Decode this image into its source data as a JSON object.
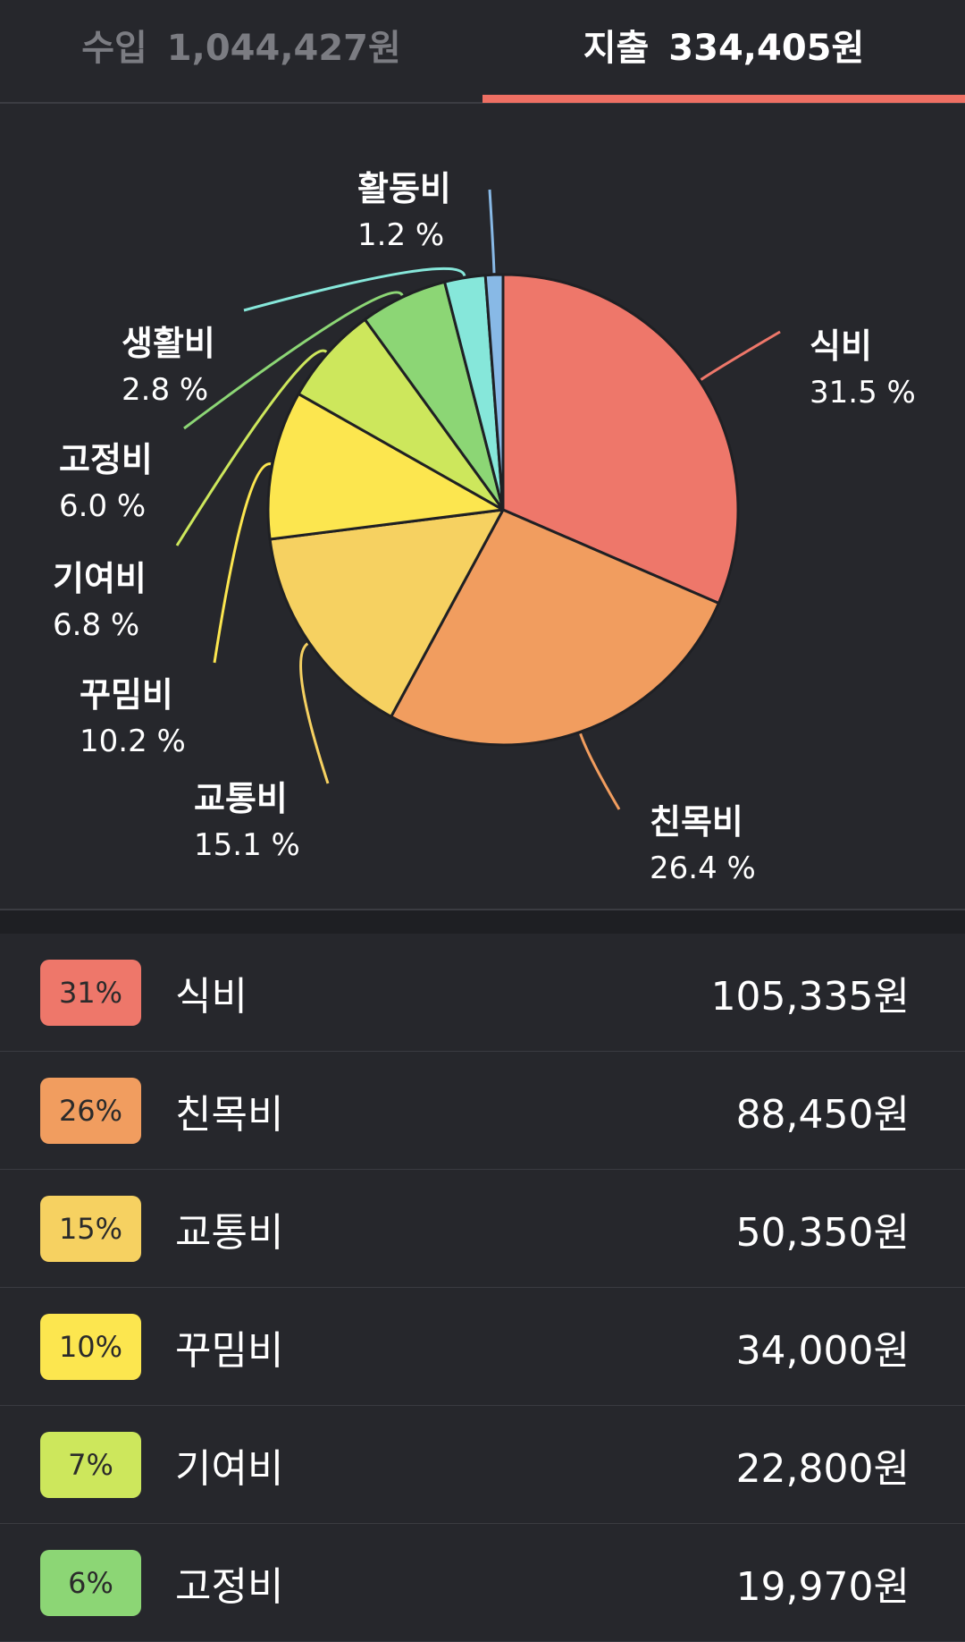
{
  "tabs": {
    "income": {
      "label": "수입",
      "amount": "1,044,427원"
    },
    "expense": {
      "label": "지출",
      "amount": "334,405원"
    }
  },
  "colors": {
    "accent": "#ee6f63",
    "background": "#26272c",
    "slice_stroke": "#1f2024"
  },
  "chart_data": {
    "type": "pie",
    "start": "12 o'clock, clockwise",
    "slices": [
      {
        "label": "식비",
        "percent": 31.5,
        "percent_text": "31.5 %",
        "color": "#ee776a"
      },
      {
        "label": "친목비",
        "percent": 26.4,
        "percent_text": "26.4 %",
        "color": "#f19d5f"
      },
      {
        "label": "교통비",
        "percent": 15.1,
        "percent_text": "15.1 %",
        "color": "#f6d161"
      },
      {
        "label": "꾸밈비",
        "percent": 10.2,
        "percent_text": "10.2 %",
        "color": "#fce64f"
      },
      {
        "label": "기여비",
        "percent": 6.8,
        "percent_text": "6.8 %",
        "color": "#cde75c"
      },
      {
        "label": "고정비",
        "percent": 6.0,
        "percent_text": "6.0 %",
        "color": "#8cd675"
      },
      {
        "label": "생활비",
        "percent": 2.8,
        "percent_text": "2.8 %",
        "color": "#86e7da"
      },
      {
        "label": "활동비",
        "percent": 1.2,
        "percent_text": "1.2 %",
        "color": "#88b9e6"
      }
    ]
  },
  "list": [
    {
      "badge": "31%",
      "name": "식비",
      "amount": "105,335원",
      "color": "#ee776a"
    },
    {
      "badge": "26%",
      "name": "친목비",
      "amount": "88,450원",
      "color": "#f19d5f"
    },
    {
      "badge": "15%",
      "name": "교통비",
      "amount": "50,350원",
      "color": "#f6d161"
    },
    {
      "badge": "10%",
      "name": "꾸밈비",
      "amount": "34,000원",
      "color": "#fce64f"
    },
    {
      "badge": "7%",
      "name": "기여비",
      "amount": "22,800원",
      "color": "#cde75c"
    },
    {
      "badge": "6%",
      "name": "고정비",
      "amount": "19,970원",
      "color": "#8cd675"
    }
  ]
}
